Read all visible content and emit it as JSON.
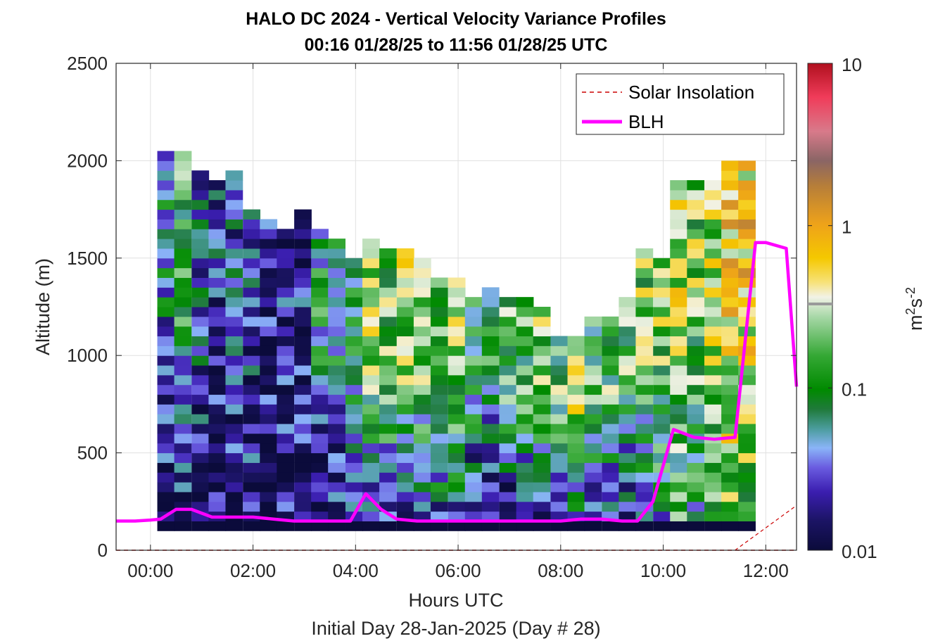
{
  "title": {
    "line1": "HALO DC 2024 - Vertical Velocity Variance Profiles",
    "line2": "00:16 01/28/25 to 11:56 01/28/25  UTC"
  },
  "x_axis": {
    "label": "Hours UTC",
    "sublabel": "Initial Day 28-Jan-2025 (Day # 28)",
    "ticks": [
      "00:00",
      "02:00",
      "04:00",
      "06:00",
      "08:00",
      "10:00",
      "12:00"
    ]
  },
  "y_axis": {
    "label": "Altitude (m)",
    "ticks": [
      "0",
      "500",
      "1000",
      "1500",
      "2000",
      "2500"
    ]
  },
  "colorbar": {
    "label": "m2s-2",
    "ticks": [
      "0.01",
      "0.1",
      "1",
      "10"
    ]
  },
  "legend": {
    "items": [
      {
        "label": "Solar Insolation",
        "style": "dashed",
        "color": "#cc0000"
      },
      {
        "label": "BLH",
        "style": "solid",
        "color": "#ff00ff"
      }
    ]
  },
  "chart_data": {
    "type": "heatmap",
    "title": "HALO DC 2024 - Vertical Velocity Variance Profiles",
    "subtitle": "00:16 01/28/25 to 11:56 01/28/25  UTC",
    "xlabel": "Hours UTC",
    "ylabel": "Altitude (m)",
    "xlim": [
      -0.67,
      12.6
    ],
    "ylim": [
      0,
      2500
    ],
    "color_scale": "log",
    "clim": [
      0.01,
      10
    ],
    "colorbar_label": "m2s-2",
    "grid": true,
    "legend_position": "top-right",
    "heatmap_columns": [
      {
        "hour": 0.3,
        "top": 2050,
        "lower": 0.015,
        "upper": 0.05
      },
      {
        "hour": 0.63,
        "top": 2050,
        "lower": 0.015,
        "upper": 0.12
      },
      {
        "hour": 0.97,
        "top": 1950,
        "lower": 0.015,
        "upper": 0.04
      },
      {
        "hour": 1.3,
        "top": 1900,
        "lower": 0.015,
        "upper": 0.03
      },
      {
        "hour": 1.63,
        "top": 1950,
        "lower": 0.015,
        "upper": 0.03
      },
      {
        "hour": 1.97,
        "top": 1750,
        "lower": 0.015,
        "upper": 0.03
      },
      {
        "hour": 2.3,
        "top": 1700,
        "lower": 0.015,
        "upper": 0.02
      },
      {
        "hour": 2.63,
        "top": 1650,
        "lower": 0.015,
        "upper": 0.02
      },
      {
        "hour": 2.97,
        "top": 1750,
        "lower": 0.015,
        "upper": 0.02
      },
      {
        "hour": 3.3,
        "top": 1650,
        "lower": 0.015,
        "upper": 0.08
      },
      {
        "hour": 3.63,
        "top": 1600,
        "lower": 0.015,
        "upper": 0.08
      },
      {
        "hour": 3.97,
        "top": 1500,
        "lower": 0.02,
        "upper": 0.1
      },
      {
        "hour": 4.3,
        "top": 1600,
        "lower": 0.03,
        "upper": 0.25
      },
      {
        "hour": 4.63,
        "top": 1550,
        "lower": 0.03,
        "upper": 0.2
      },
      {
        "hour": 4.97,
        "top": 1550,
        "lower": 0.03,
        "upper": 0.25
      },
      {
        "hour": 5.3,
        "top": 1500,
        "lower": 0.03,
        "upper": 0.2
      },
      {
        "hour": 5.63,
        "top": 1400,
        "lower": 0.03,
        "upper": 0.2
      },
      {
        "hour": 5.97,
        "top": 1400,
        "lower": 0.03,
        "upper": 0.25
      },
      {
        "hour": 6.3,
        "top": 1300,
        "lower": 0.015,
        "upper": 0.1
      },
      {
        "hour": 6.63,
        "top": 1350,
        "lower": 0.015,
        "upper": 0.1
      },
      {
        "hour": 6.97,
        "top": 1300,
        "lower": 0.015,
        "upper": 0.15
      },
      {
        "hour": 7.3,
        "top": 1300,
        "lower": 0.02,
        "upper": 0.15
      },
      {
        "hour": 7.63,
        "top": 1250,
        "lower": 0.02,
        "upper": 0.2
      },
      {
        "hour": 7.97,
        "top": 1100,
        "lower": 0.02,
        "upper": 0.15
      },
      {
        "hour": 8.3,
        "top": 1100,
        "lower": 0.03,
        "upper": 0.4
      },
      {
        "hour": 8.63,
        "top": 1200,
        "lower": 0.03,
        "upper": 0.12
      },
      {
        "hour": 8.97,
        "top": 1200,
        "lower": 0.02,
        "upper": 0.15
      },
      {
        "hour": 9.3,
        "top": 1300,
        "lower": 0.02,
        "upper": 0.15
      },
      {
        "hour": 9.63,
        "top": 1550,
        "lower": 0.03,
        "upper": 0.2
      },
      {
        "hour": 9.97,
        "top": 1500,
        "lower": 0.06,
        "upper": 0.2
      },
      {
        "hour": 10.3,
        "top": 1900,
        "lower": 0.1,
        "upper": 0.3
      },
      {
        "hour": 10.63,
        "top": 1900,
        "lower": 0.08,
        "upper": 0.2
      },
      {
        "hour": 10.97,
        "top": 1900,
        "lower": 0.12,
        "upper": 0.3
      },
      {
        "hour": 11.3,
        "top": 2000,
        "lower": 0.2,
        "upper": 0.5
      },
      {
        "hour": 11.63,
        "top": 2000,
        "lower": 0.15,
        "upper": 0.6
      }
    ],
    "series": [
      {
        "name": "Solar Insolation",
        "x": [
          -0.67,
          11.2,
          11.4,
          11.6,
          11.8,
          12.0,
          12.2,
          12.4,
          12.6
        ],
        "y": [
          0,
          0,
          0,
          0,
          0,
          0,
          0,
          0,
          0
        ]
      },
      {
        "name": "BLH",
        "x": [
          -0.67,
          -0.3,
          0.0,
          0.2,
          0.5,
          0.8,
          1.2,
          1.6,
          2.0,
          2.4,
          2.8,
          3.2,
          3.6,
          3.9,
          4.2,
          4.5,
          4.8,
          5.2,
          5.6,
          6.0,
          6.4,
          6.8,
          7.2,
          7.6,
          8.0,
          8.4,
          8.8,
          9.2,
          9.5,
          9.8,
          10.2,
          10.6,
          11.0,
          11.4,
          11.8,
          12.0,
          12.4,
          12.6
        ],
        "y": [
          150,
          150,
          155,
          160,
          210,
          210,
          170,
          170,
          170,
          160,
          150,
          150,
          150,
          150,
          290,
          210,
          160,
          150,
          150,
          150,
          150,
          150,
          150,
          150,
          150,
          160,
          160,
          150,
          150,
          250,
          620,
          580,
          570,
          580,
          1580,
          1580,
          1550,
          840
        ]
      }
    ]
  }
}
